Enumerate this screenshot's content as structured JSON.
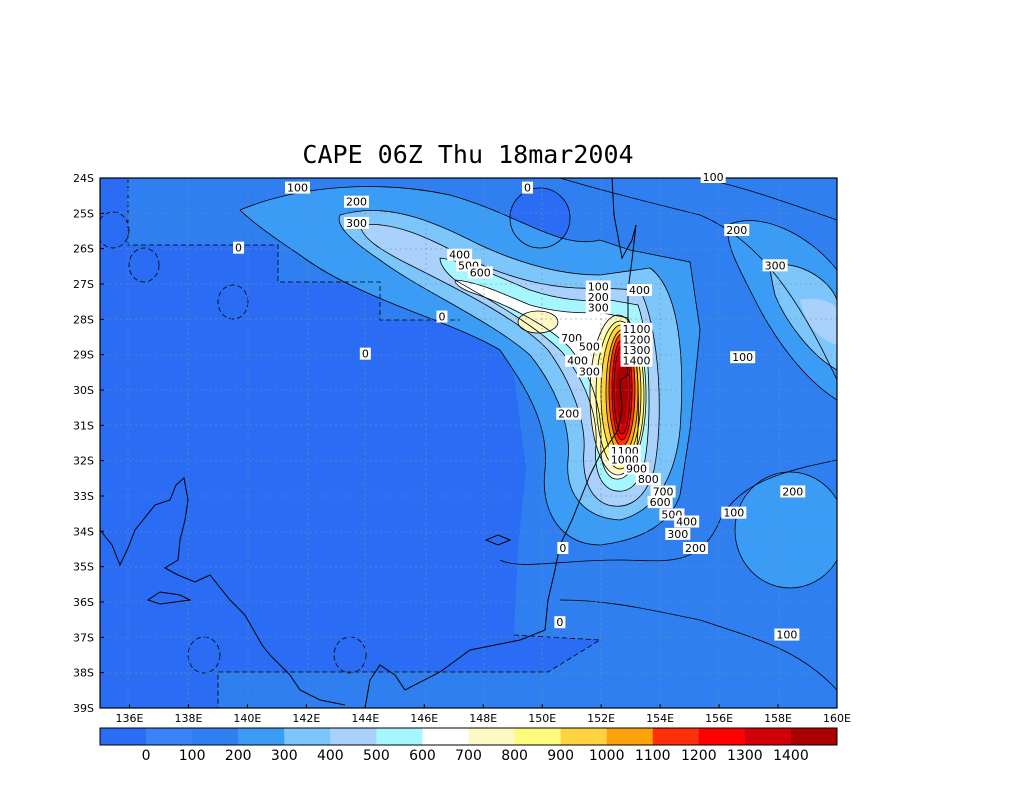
{
  "title": "CAPE 06Z Thu 18mar2004",
  "map": {
    "lon_labels": [
      "136E",
      "138E",
      "140E",
      "142E",
      "144E",
      "146E",
      "148E",
      "150E",
      "152E",
      "154E",
      "156E",
      "158E",
      "160E"
    ],
    "lat_labels": [
      "24S",
      "25S",
      "26S",
      "27S",
      "28S",
      "29S",
      "30S",
      "31S",
      "32S",
      "33S",
      "34S",
      "35S",
      "36S",
      "37S",
      "38S",
      "39S"
    ],
    "contour_labels": [
      {
        "text": "100",
        "lon": 141.7,
        "lat": 24.3
      },
      {
        "text": "0",
        "lon": 149.5,
        "lat": 24.3
      },
      {
        "text": "100",
        "lon": 155.8,
        "lat": 24.0
      },
      {
        "text": "200",
        "lon": 143.7,
        "lat": 24.7
      },
      {
        "text": "300",
        "lon": 143.7,
        "lat": 25.3
      },
      {
        "text": "0",
        "lon": 139.7,
        "lat": 26.0
      },
      {
        "text": "200",
        "lon": 156.6,
        "lat": 25.5
      },
      {
        "text": "300",
        "lon": 157.9,
        "lat": 26.5
      },
      {
        "text": "400",
        "lon": 147.2,
        "lat": 26.2
      },
      {
        "text": "500",
        "lon": 147.5,
        "lat": 26.5
      },
      {
        "text": "600",
        "lon": 147.9,
        "lat": 26.7
      },
      {
        "text": "100",
        "lon": 151.9,
        "lat": 27.1
      },
      {
        "text": "200",
        "lon": 151.9,
        "lat": 27.4
      },
      {
        "text": "300",
        "lon": 151.9,
        "lat": 27.7
      },
      {
        "text": "400",
        "lon": 153.3,
        "lat": 27.2
      },
      {
        "text": "0",
        "lon": 146.6,
        "lat": 27.95
      },
      {
        "text": "700",
        "lon": 151.0,
        "lat": 28.55
      },
      {
        "text": "1100",
        "lon": 153.2,
        "lat": 28.3
      },
      {
        "text": "1200",
        "lon": 153.2,
        "lat": 28.6
      },
      {
        "text": "1300",
        "lon": 153.2,
        "lat": 28.9
      },
      {
        "text": "1400",
        "lon": 153.2,
        "lat": 29.2
      },
      {
        "text": "0",
        "lon": 144.0,
        "lat": 29.0
      },
      {
        "text": "500",
        "lon": 151.6,
        "lat": 28.8
      },
      {
        "text": "400",
        "lon": 151.2,
        "lat": 29.2
      },
      {
        "text": "300",
        "lon": 151.6,
        "lat": 29.5
      },
      {
        "text": "100",
        "lon": 156.8,
        "lat": 29.1
      },
      {
        "text": "200",
        "lon": 150.9,
        "lat": 30.7
      },
      {
        "text": "1100",
        "lon": 152.8,
        "lat": 31.75
      },
      {
        "text": "1000",
        "lon": 152.8,
        "lat": 32.0
      },
      {
        "text": "900",
        "lon": 153.2,
        "lat": 32.25
      },
      {
        "text": "800",
        "lon": 153.6,
        "lat": 32.55
      },
      {
        "text": "700",
        "lon": 154.1,
        "lat": 32.9
      },
      {
        "text": "600",
        "lon": 154.0,
        "lat": 33.2
      },
      {
        "text": "500",
        "lon": 154.4,
        "lat": 33.55
      },
      {
        "text": "400",
        "lon": 154.9,
        "lat": 33.75
      },
      {
        "text": "300",
        "lon": 154.6,
        "lat": 34.1
      },
      {
        "text": "200",
        "lon": 155.2,
        "lat": 34.5
      },
      {
        "text": "200",
        "lon": 158.5,
        "lat": 32.9
      },
      {
        "text": "100",
        "lon": 156.5,
        "lat": 33.5
      },
      {
        "text": "0",
        "lon": 150.7,
        "lat": 34.5
      },
      {
        "text": "0",
        "lon": 150.6,
        "lat": 36.6
      },
      {
        "text": "100",
        "lon": 158.3,
        "lat": 36.95
      }
    ]
  },
  "colorbar": {
    "colors": [
      "#2a6df4",
      "#3a83f7",
      "#2f7ff0",
      "#3b9cf6",
      "#7cc6fb",
      "#a9d1fb",
      "#a6f6ff",
      "#ffffff",
      "#fdf9c4",
      "#fffb7d",
      "#ffd23f",
      "#fea20a",
      "#ff2f0a",
      "#ff0000",
      "#d1000a",
      "#aa0000"
    ],
    "labels": [
      "0",
      "100",
      "200",
      "300",
      "400",
      "500",
      "600",
      "700",
      "800",
      "900",
      "1000",
      "1100",
      "1200",
      "1300",
      "1400"
    ]
  }
}
